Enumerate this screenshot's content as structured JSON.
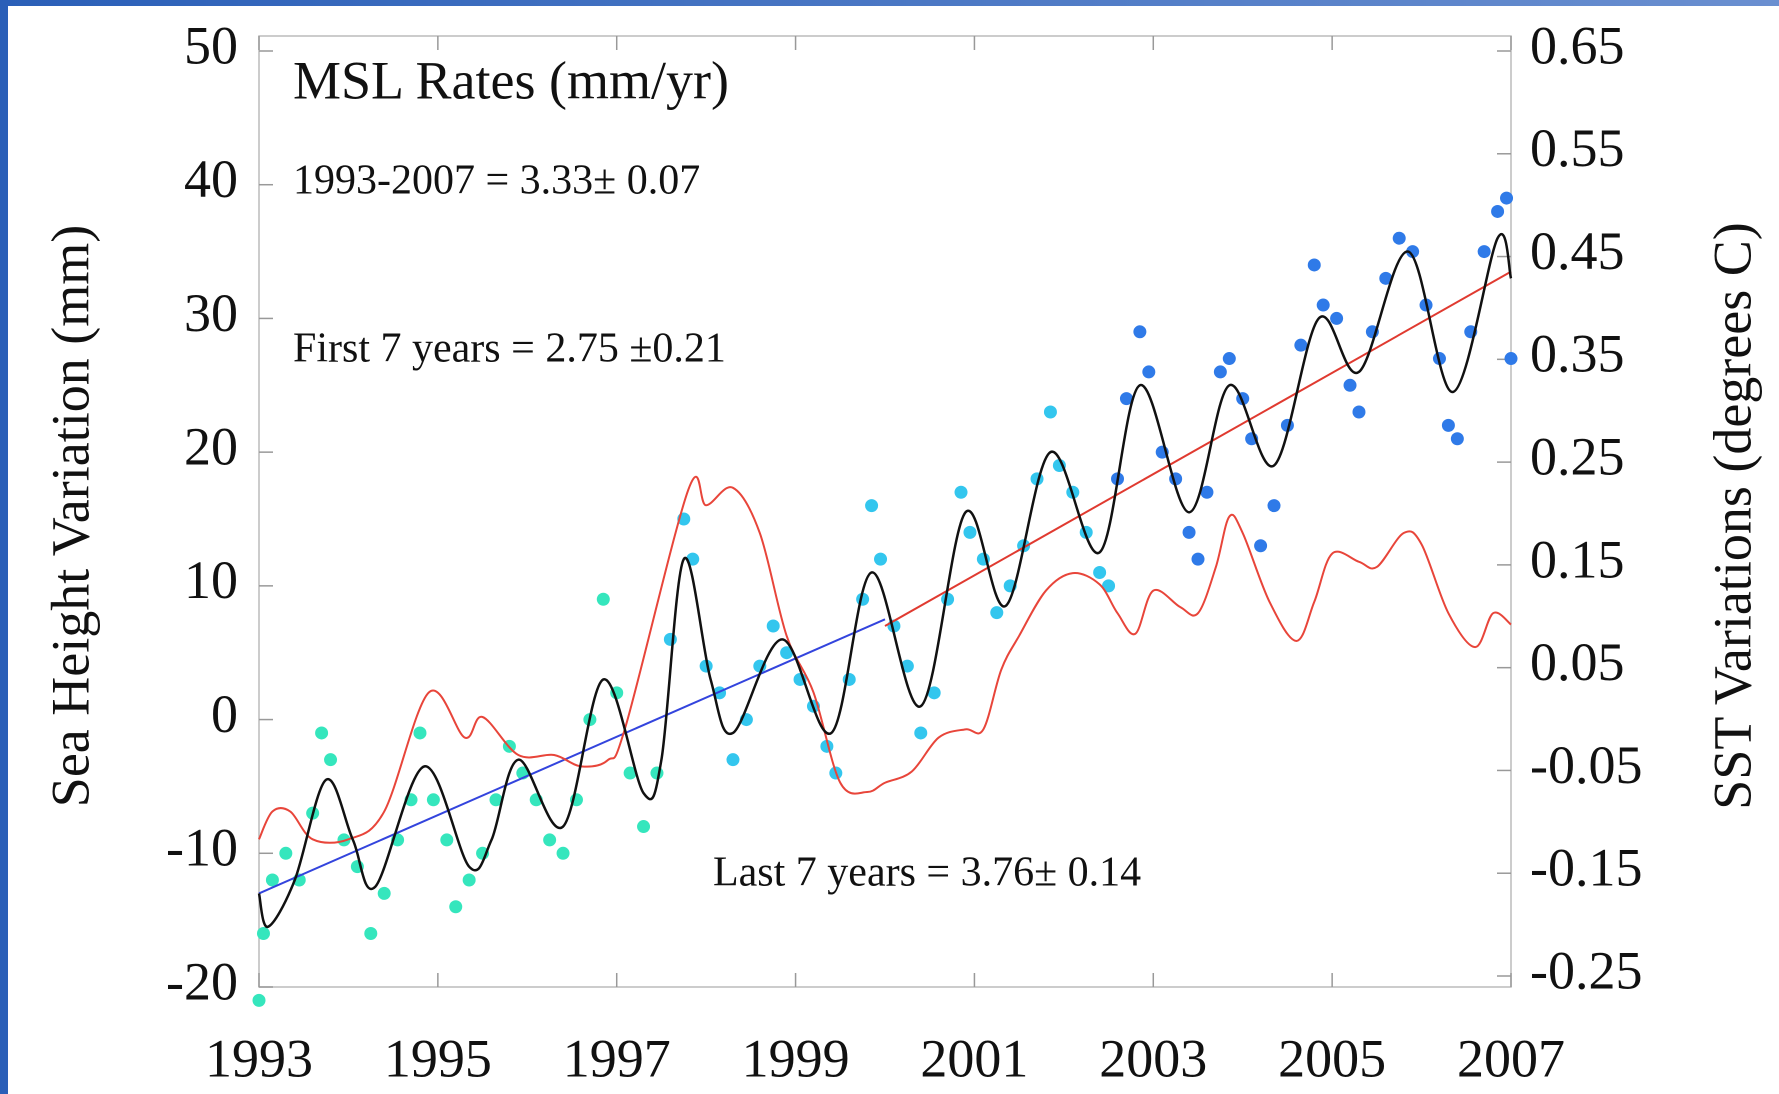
{
  "chart_data": {
    "type": "scatter",
    "annotations": [
      "MSL Rates (mm/yr)",
      "1993-2007 = 3.33± 0.07",
      "First 7 years = 2.75  ±0.21",
      "Last 7 years = 3.76± 0.14"
    ],
    "y_label": "Sea Height Variation (mm)",
    "y2_label": "SST Variations (degrees C)",
    "xlim": [
      1993,
      2007
    ],
    "xticks": [
      1993,
      1995,
      1997,
      1999,
      2001,
      2003,
      2005,
      2007
    ],
    "ylim": [
      -20,
      50
    ],
    "yticks": [
      -20,
      -10,
      0,
      10,
      20,
      30,
      40,
      50
    ],
    "y2lim": [
      -0.25,
      0.65
    ],
    "y2ticks": [
      -0.25,
      -0.15,
      -0.05,
      0.05,
      0.15,
      0.25,
      0.35,
      0.45,
      0.55,
      0.65
    ],
    "grid": false,
    "series": [
      {
        "type": "scatter",
        "color": "#35e6bd",
        "x": [
          1993.0,
          1993.05,
          1993.15,
          1993.3,
          1993.45,
          1993.6,
          1993.7,
          1993.8,
          1993.95,
          1994.1,
          1994.25,
          1994.4,
          1994.55,
          1994.7,
          1994.8,
          1994.95,
          1995.1,
          1995.2,
          1995.35,
          1995.5,
          1995.65,
          1995.8,
          1995.95,
          1996.1,
          1996.25,
          1996.4,
          1996.55,
          1996.7,
          1996.85,
          1997.0,
          1997.15,
          1997.3,
          1997.45
        ],
        "values": [
          -21,
          -16,
          -12,
          -10,
          -12,
          -7,
          -1,
          -3,
          -9,
          -11,
          -16,
          -13,
          -9,
          -6,
          -1,
          -6,
          -9,
          -14,
          -12,
          -10,
          -6,
          -2,
          -4,
          -6,
          -9,
          -10,
          -6,
          0,
          9,
          2,
          -4,
          -8,
          -4
        ]
      },
      {
        "type": "scatter",
        "color": "#33c6ee",
        "x": [
          1997.6,
          1997.75,
          1997.85,
          1998.0,
          1998.15,
          1998.3,
          1998.45,
          1998.6,
          1998.75,
          1998.9,
          1999.05,
          1999.2,
          1999.35,
          1999.45,
          1999.6,
          1999.75,
          1999.85,
          1999.95,
          2000.1,
          2000.25,
          2000.4,
          2000.55,
          2000.7,
          2000.85,
          2000.95,
          2001.1,
          2001.25,
          2001.4,
          2001.55,
          2001.7,
          2001.85,
          2001.95,
          2002.1,
          2002.25,
          2002.4,
          2002.5
        ],
        "values": [
          6,
          15,
          12,
          4,
          2,
          -3,
          0,
          4,
          7,
          5,
          3,
          1,
          -2,
          -4,
          3,
          9,
          16,
          12,
          7,
          4,
          -1,
          2,
          9,
          17,
          14,
          12,
          8,
          10,
          13,
          18,
          23,
          19,
          17,
          14,
          11,
          10
        ]
      },
      {
        "type": "scatter",
        "color": "#2f7ae8",
        "x": [
          2002.6,
          2002.7,
          2002.85,
          2002.95,
          2003.1,
          2003.25,
          2003.4,
          2003.5,
          2003.6,
          2003.75,
          2003.85,
          2004.0,
          2004.1,
          2004.2,
          2004.35,
          2004.5,
          2004.65,
          2004.8,
          2004.9,
          2005.05,
          2005.2,
          2005.3,
          2005.45,
          2005.6,
          2005.75,
          2005.9,
          2006.05,
          2006.2,
          2006.3,
          2006.4,
          2006.55,
          2006.7,
          2006.85,
          2006.95,
          2007.0
        ],
        "values": [
          18,
          24,
          29,
          26,
          20,
          18,
          14,
          12,
          17,
          26,
          27,
          24,
          21,
          13,
          16,
          22,
          28,
          34,
          31,
          30,
          25,
          23,
          29,
          33,
          36,
          35,
          31,
          27,
          22,
          21,
          29,
          35,
          38,
          39,
          27
        ]
      },
      {
        "type": "line",
        "color": "#3344dd",
        "x": [
          1993,
          2000
        ],
        "values": [
          -13,
          7.5
        ]
      },
      {
        "type": "line",
        "color": "#e03a30",
        "x": [
          2000,
          2007
        ],
        "values": [
          7,
          33.5
        ]
      },
      {
        "type": "line",
        "color": "#e8453a",
        "axis": "y2",
        "x": [
          1993.0,
          1993.15,
          1993.35,
          1993.6,
          1994.0,
          1994.4,
          1994.9,
          1995.3,
          1995.5,
          1995.9,
          1996.3,
          1996.6,
          1996.9,
          1997.1,
          1997.8,
          1998.0,
          1998.3,
          1998.6,
          1998.9,
          1999.2,
          1999.5,
          1999.8,
          2000.0,
          2000.3,
          2000.6,
          2000.9,
          2001.1,
          2001.3,
          2001.5,
          2001.8,
          2002.1,
          2002.4,
          2002.6,
          2002.8,
          2003.0,
          2003.3,
          2003.5,
          2003.7,
          2003.85,
          2004.0,
          2004.3,
          2004.6,
          2004.8,
          2005.0,
          2005.3,
          2005.5,
          2005.8,
          2006.0,
          2006.3,
          2006.6,
          2006.8,
          2007.0
        ],
        "values": [
          -0.117,
          -0.09,
          -0.09,
          -0.117,
          -0.117,
          -0.09,
          0.026,
          -0.018,
          0.002,
          -0.035,
          -0.035,
          -0.046,
          -0.04,
          -0.007,
          0.223,
          0.208,
          0.225,
          0.181,
          0.081,
          0.026,
          -0.062,
          -0.071,
          -0.062,
          -0.051,
          -0.018,
          -0.01,
          -0.01,
          0.048,
          0.081,
          0.125,
          0.142,
          0.131,
          0.103,
          0.083,
          0.125,
          0.109,
          0.103,
          0.148,
          0.197,
          0.181,
          0.114,
          0.076,
          0.114,
          0.161,
          0.153,
          0.148,
          0.181,
          0.17,
          0.103,
          0.07,
          0.103,
          0.092
        ]
      },
      {
        "type": "smooth",
        "color": "#111111",
        "x": [
          1993.0,
          1993.1,
          1993.4,
          1993.75,
          1994.05,
          1994.3,
          1994.85,
          1995.35,
          1995.6,
          1995.9,
          1996.4,
          1996.85,
          1997.3,
          1997.5,
          1997.75,
          1998.05,
          1998.3,
          1998.85,
          1999.4,
          1999.85,
          2000.4,
          2000.9,
          2001.35,
          2001.85,
          2002.4,
          2002.85,
          2003.4,
          2003.85,
          2004.35,
          2004.85,
          2005.3,
          2005.85,
          2006.35,
          2006.85,
          2007.0
        ],
        "values": [
          -13,
          -15.5,
          -12,
          -4.5,
          -9,
          -12.5,
          -3.5,
          -11,
          -9,
          -3,
          -8,
          3,
          -5.5,
          -3,
          12,
          3,
          -1,
          6,
          -1,
          11,
          1,
          15.5,
          8.5,
          20,
          12.5,
          25,
          15.5,
          25,
          19,
          30,
          26,
          35,
          24.5,
          36,
          33
        ]
      }
    ]
  }
}
